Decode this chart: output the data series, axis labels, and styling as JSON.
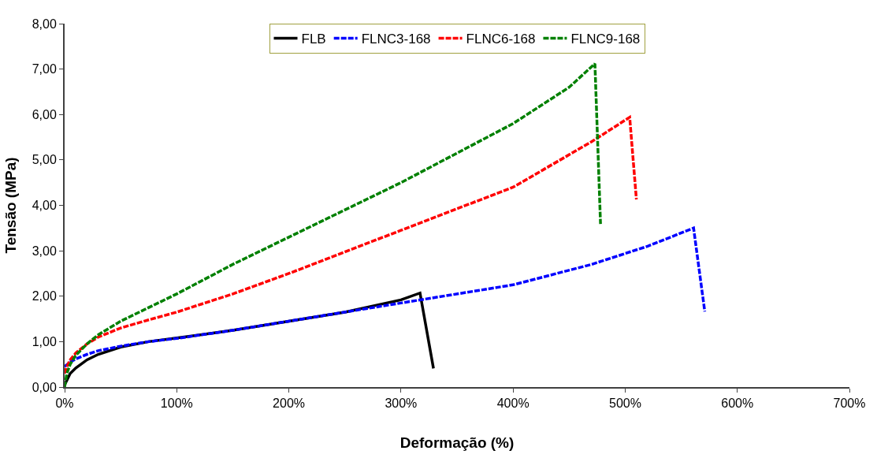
{
  "chart_data": {
    "type": "line",
    "xlabel": "Deformação (%)",
    "ylabel": "Tensão (MPa)",
    "xlim": [
      0,
      700
    ],
    "ylim": [
      0,
      8
    ],
    "xticks": [
      {
        "value": 0,
        "label": "0%"
      },
      {
        "value": 100,
        "label": "100%"
      },
      {
        "value": 200,
        "label": "200%"
      },
      {
        "value": 300,
        "label": "300%"
      },
      {
        "value": 400,
        "label": "400%"
      },
      {
        "value": 500,
        "label": "500%"
      },
      {
        "value": 600,
        "label": "600%"
      },
      {
        "value": 700,
        "label": "700%"
      }
    ],
    "yticks": [
      {
        "value": 0,
        "label": "0,00"
      },
      {
        "value": 1,
        "label": "1,00"
      },
      {
        "value": 2,
        "label": "2,00"
      },
      {
        "value": 3,
        "label": "3,00"
      },
      {
        "value": 4,
        "label": "4,00"
      },
      {
        "value": 5,
        "label": "5,00"
      },
      {
        "value": 6,
        "label": "6,00"
      },
      {
        "value": 7,
        "label": "7,00"
      },
      {
        "value": 8,
        "label": "8,00"
      }
    ],
    "grid": false,
    "legend": "top",
    "marker": "none",
    "series": [
      {
        "name": "FLB",
        "color": "#000000",
        "line_style": "solid",
        "x": [
          0,
          2,
          5,
          10,
          20,
          30,
          50,
          75,
          100,
          150,
          200,
          250,
          300,
          317,
          329
        ],
        "values": [
          0.05,
          0.15,
          0.3,
          0.42,
          0.6,
          0.72,
          0.88,
          1.0,
          1.08,
          1.25,
          1.45,
          1.65,
          1.92,
          2.07,
          0.41
        ]
      },
      {
        "name": "FLNC3-168",
        "color": "#0000ff",
        "line_style": "dashed",
        "x": [
          0,
          5,
          10,
          20,
          30,
          50,
          75,
          100,
          150,
          200,
          300,
          400,
          470,
          520,
          561,
          571
        ],
        "values": [
          0.45,
          0.55,
          0.62,
          0.72,
          0.8,
          0.9,
          1.0,
          1.07,
          1.25,
          1.45,
          1.85,
          2.25,
          2.7,
          3.1,
          3.5,
          1.66
        ]
      },
      {
        "name": "FLNC6-168",
        "color": "#ff0000",
        "line_style": "dashed",
        "x": [
          0,
          2,
          5,
          10,
          20,
          30,
          50,
          75,
          100,
          150,
          200,
          300,
          400,
          470,
          504,
          510
        ],
        "values": [
          0.3,
          0.45,
          0.6,
          0.75,
          0.95,
          1.1,
          1.3,
          1.48,
          1.65,
          2.05,
          2.5,
          3.45,
          4.4,
          5.4,
          5.94,
          4.13
        ]
      },
      {
        "name": "FLNC9-168",
        "color": "#008000",
        "line_style": "dashed",
        "x": [
          0,
          2,
          5,
          10,
          20,
          30,
          50,
          75,
          100,
          150,
          200,
          300,
          400,
          450,
          473,
          478
        ],
        "values": [
          0.0,
          0.3,
          0.5,
          0.7,
          0.95,
          1.15,
          1.45,
          1.75,
          2.05,
          2.7,
          3.3,
          4.5,
          5.8,
          6.6,
          7.12,
          3.59
        ]
      }
    ]
  }
}
